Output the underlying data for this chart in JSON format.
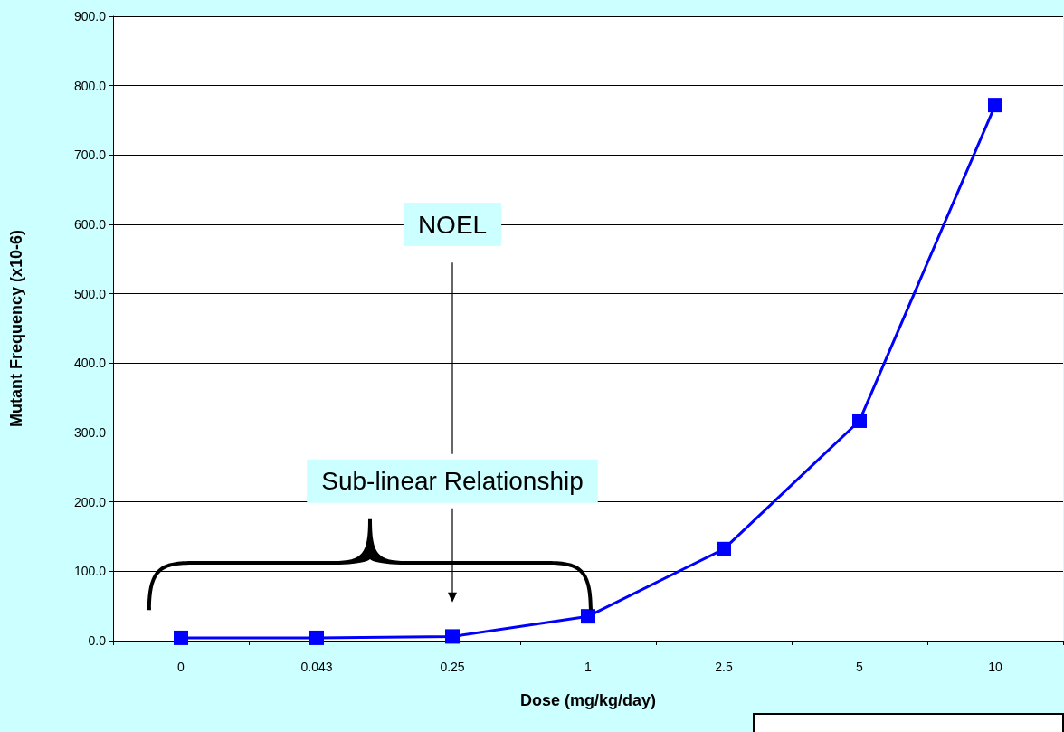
{
  "chart_data": {
    "type": "line",
    "xlabel": "Dose (mg/kg/day)",
    "ylabel": "Mutant Frequency (x10-6)",
    "categories": [
      "0",
      "0.043",
      "0.25",
      "1",
      "2.5",
      "5",
      "10"
    ],
    "series": [
      {
        "color": "#0000ff",
        "values": [
          4,
          4,
          6,
          35,
          132,
          317,
          772
        ]
      }
    ],
    "ylim": [
      0,
      900
    ],
    "yticks": [
      {
        "value": 0,
        "label": "0.0"
      },
      {
        "value": 100,
        "label": "100.0"
      },
      {
        "value": 200,
        "label": "200.0"
      },
      {
        "value": 300,
        "label": "300.0"
      },
      {
        "value": 400,
        "label": "400.0"
      },
      {
        "value": 500,
        "label": "500.0"
      },
      {
        "value": 600,
        "label": "600.0"
      },
      {
        "value": 700,
        "label": "700.0"
      },
      {
        "value": 800,
        "label": "800.0"
      },
      {
        "value": 900,
        "label": "900.0"
      }
    ],
    "grid": "y",
    "marker": "square",
    "line_style": "solid",
    "annotations": [
      "NOEL",
      "Sub-linear Relationship"
    ]
  }
}
